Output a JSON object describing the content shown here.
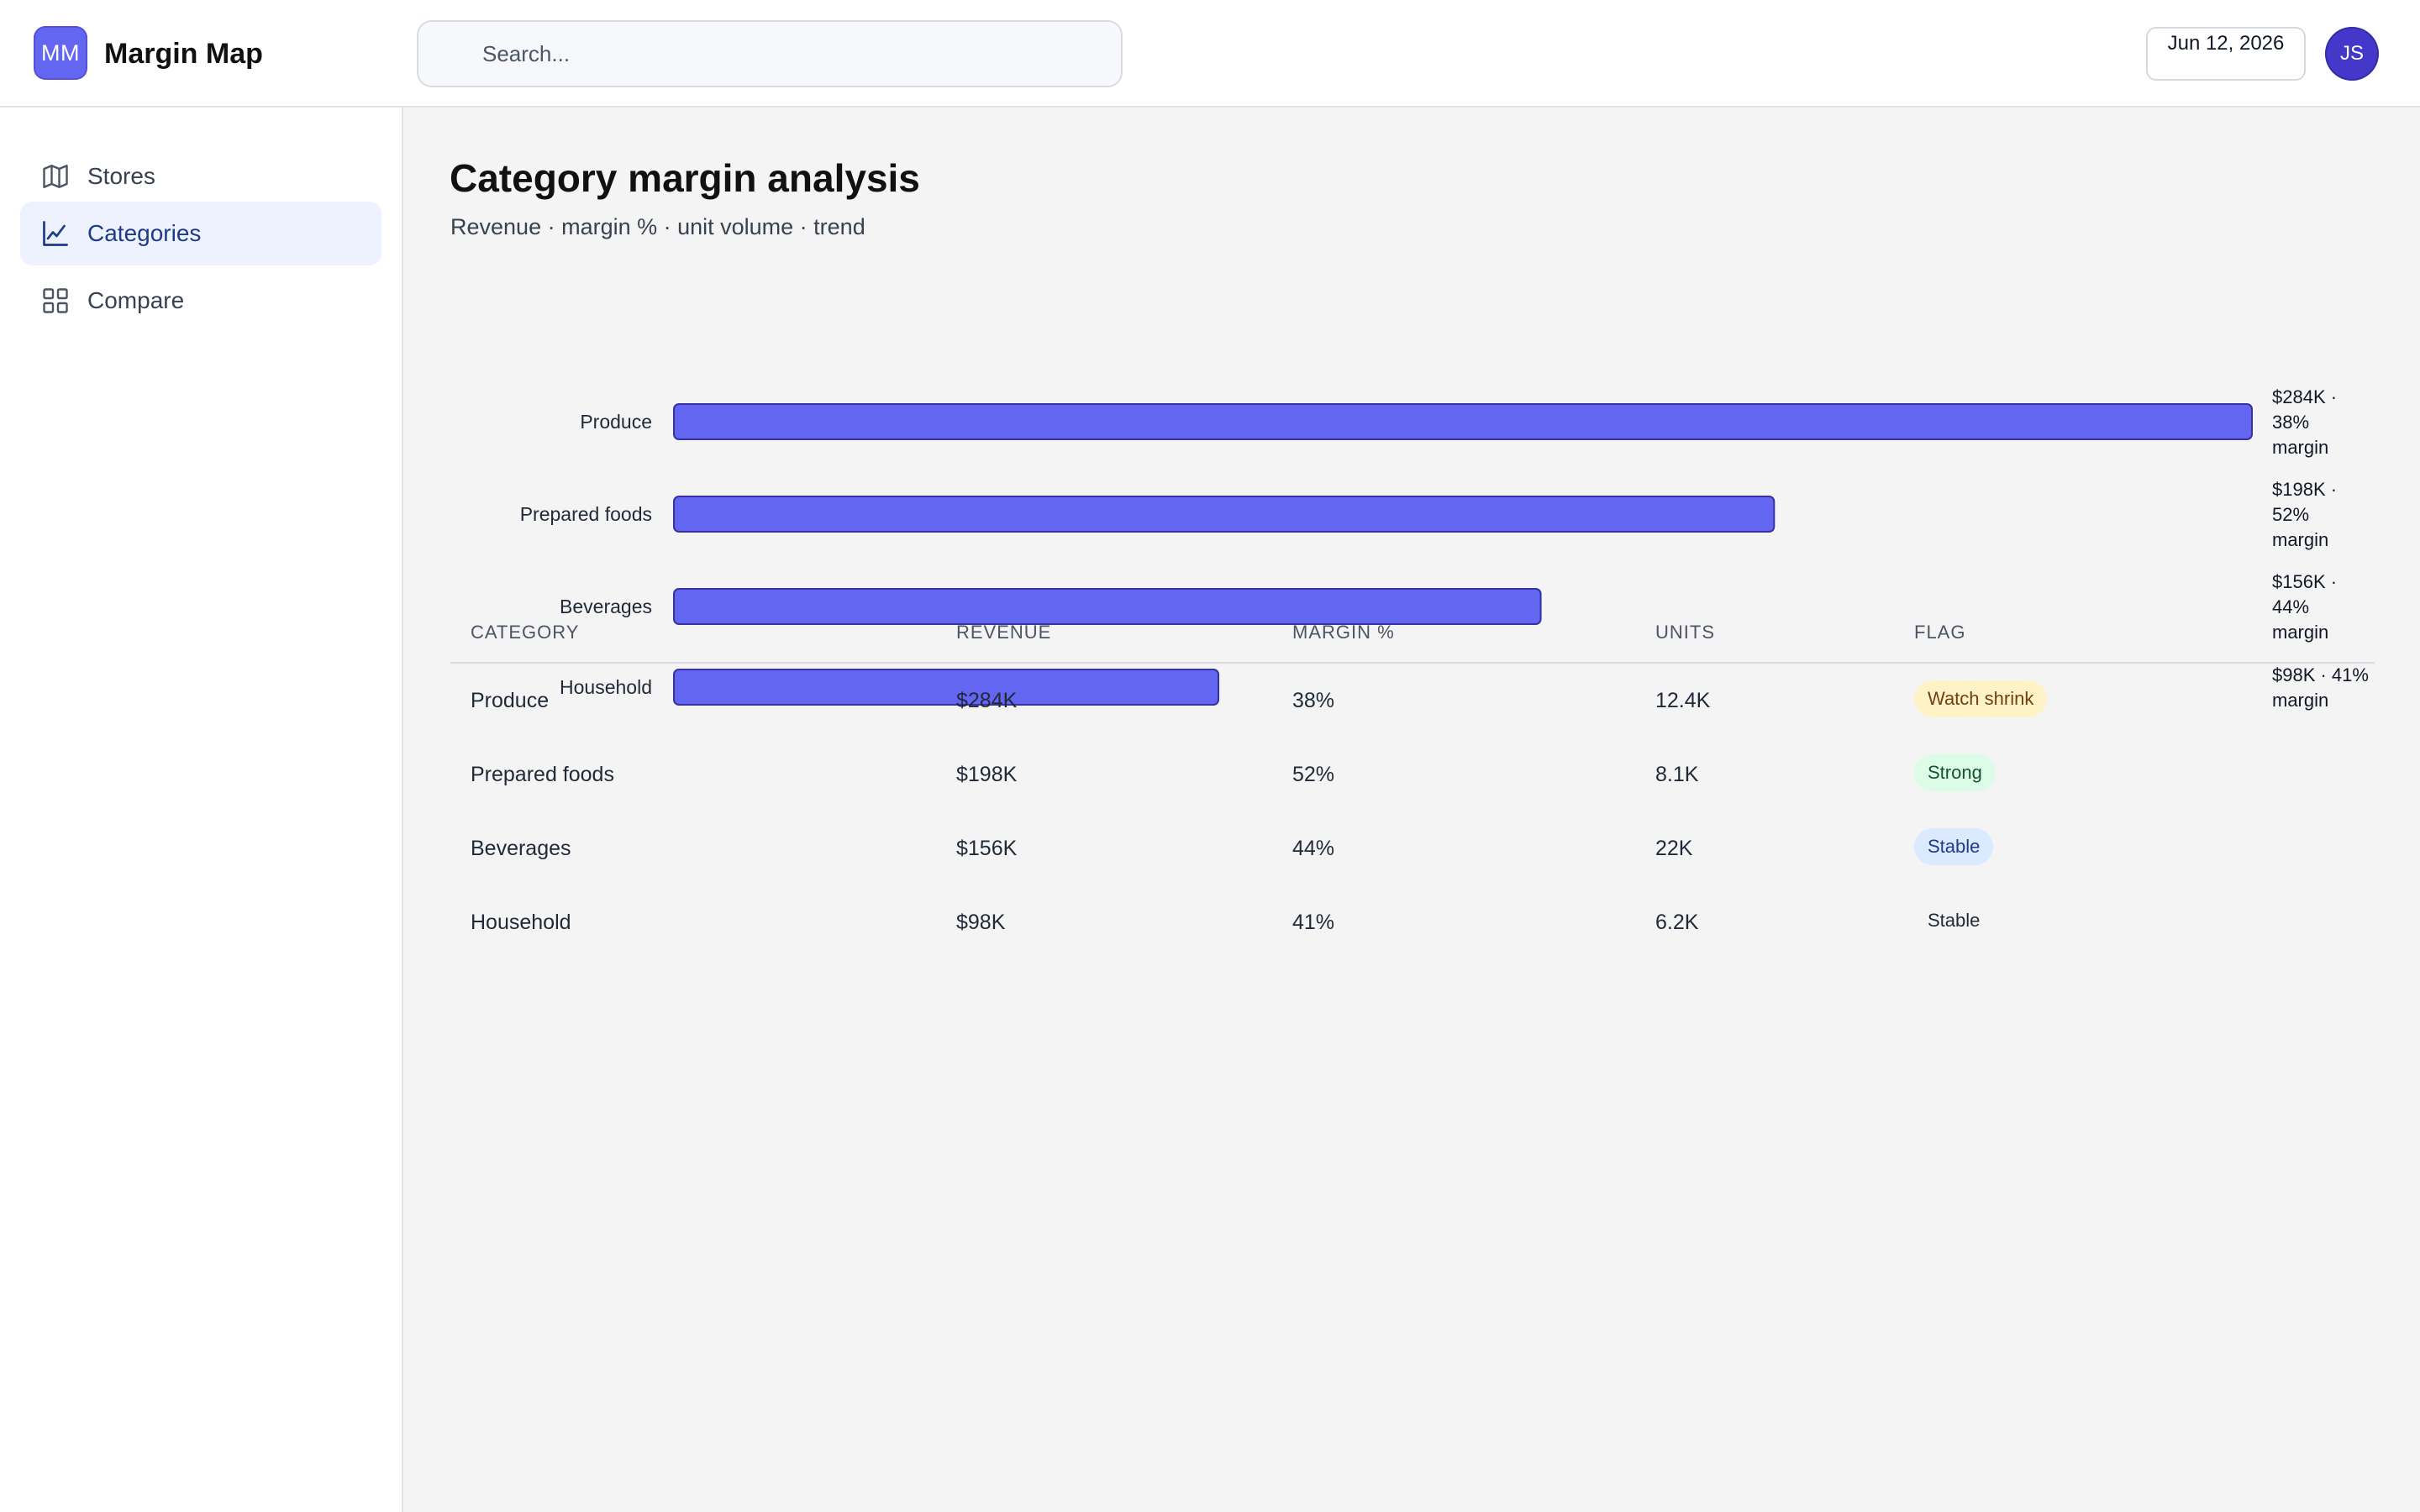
{
  "app": {
    "logo_text": "MM",
    "name": "Margin Map"
  },
  "search": {
    "placeholder": "Search..."
  },
  "header": {
    "date": "Jun 12, 2026",
    "avatar_initials": "JS"
  },
  "sidebar": {
    "items": [
      {
        "label": "Stores",
        "icon": "map-icon",
        "active": false
      },
      {
        "label": "Categories",
        "icon": "line-chart-icon",
        "active": true
      },
      {
        "label": "Compare",
        "icon": "grid-icon",
        "active": false
      }
    ]
  },
  "page": {
    "title": "Category margin analysis",
    "subtitle": "Revenue · margin % · unit volume · trend"
  },
  "chart_data": {
    "type": "bar",
    "orientation": "horizontal",
    "categories": [
      "Produce",
      "Prepared foods",
      "Beverages",
      "Household"
    ],
    "values": [
      284,
      198,
      156,
      98
    ],
    "unit": "$K",
    "data_labels": [
      [
        "$284K ·",
        "38%",
        "margin"
      ],
      [
        "$198K ·",
        "52%",
        "margin"
      ],
      [
        "$156K ·",
        "44%",
        "margin"
      ],
      [
        "$98K · 41%",
        "margin"
      ]
    ],
    "xlim": [
      0,
      284
    ],
    "grid": false,
    "bar_color": "#6366f1",
    "bar_stroke": "#3730a3"
  },
  "table": {
    "columns": [
      "CATEGORY",
      "REVENUE",
      "MARGIN %",
      "UNITS",
      "FLAG"
    ],
    "rows": [
      {
        "category": "Produce",
        "revenue": "$284K",
        "margin": "38%",
        "units": "12.4K",
        "flag": "Watch shrink",
        "flag_style": "warn"
      },
      {
        "category": "Prepared foods",
        "revenue": "$198K",
        "margin": "52%",
        "units": "8.1K",
        "flag": "Strong",
        "flag_style": "ok"
      },
      {
        "category": "Beverages",
        "revenue": "$156K",
        "margin": "44%",
        "units": "22K",
        "flag": "Stable",
        "flag_style": "info"
      },
      {
        "category": "Household",
        "revenue": "$98K",
        "margin": "41%",
        "units": "6.2K",
        "flag": "Stable",
        "flag_style": "plain"
      }
    ]
  },
  "colors": {
    "accent": "#6366f1",
    "avatar": "#4338ca",
    "active_nav_bg": "#eef2ff"
  }
}
